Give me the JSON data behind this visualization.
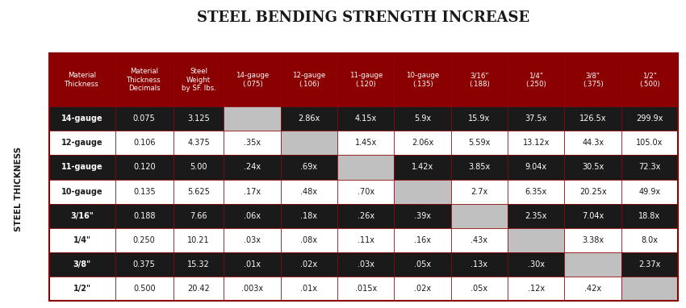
{
  "title": "STEEL BENDING STRENGTH INCREASE",
  "col_headers": [
    "Material\nThickness",
    "Material\nThickness\nDecimals",
    "Steel\nWeight\nby SF. lbs.",
    "14-gauge\n(.075)",
    "12-gauge\n(.106)",
    "11-gauge\n(.120)",
    "10-gauge\n(.135)",
    "3/16\"\n(.188)",
    "1/4\"\n(.250)",
    "3/8\"\n(.375)",
    "1/2\"\n(.500)"
  ],
  "row_labels": [
    "14-gauge",
    "12-gauge",
    "11-gauge",
    "10-gauge",
    "3/16\"",
    "1/4\"",
    "3/8\"",
    "1/2\""
  ],
  "decimals": [
    "0.075",
    "0.106",
    "0.120",
    "0.135",
    "0.188",
    "0.250",
    "0.375",
    "0.500"
  ],
  "weights": [
    "3.125",
    "4.375",
    "5.00",
    "5.625",
    "7.66",
    "10.21",
    "15.32",
    "20.42"
  ],
  "table_data": [
    [
      "",
      "2.86x",
      "4.15x",
      "5.9x",
      "15.9x",
      "37.5x",
      "126.5x",
      "299.9x"
    ],
    [
      ".35x",
      "",
      "1.45x",
      "2.06x",
      "5.59x",
      "13.12x",
      "44.3x",
      "105.0x"
    ],
    [
      ".24x",
      ".69x",
      "",
      "1.42x",
      "3.85x",
      "9.04x",
      "30.5x",
      "72.3x"
    ],
    [
      ".17x",
      ".48x",
      ".70x",
      "",
      "2.7x",
      "6.35x",
      "20.25x",
      "49.9x"
    ],
    [
      ".06x",
      ".18x",
      ".26x",
      ".39x",
      "",
      "2.35x",
      "7.04x",
      "18.8x"
    ],
    [
      ".03x",
      ".08x",
      ".11x",
      ".16x",
      ".43x",
      "",
      "3.38x",
      "8.0x"
    ],
    [
      ".01x",
      ".02x",
      ".03x",
      ".05x",
      ".13x",
      ".30x",
      "",
      "2.37x"
    ],
    [
      ".003x",
      ".01x",
      ".015x",
      ".02x",
      ".05x",
      ".12x",
      ".42x",
      ""
    ]
  ],
  "header_bg": "#8B0000",
  "header_text": "#FFFFFF",
  "row_dark_bg": "#1a1a1a",
  "row_dark_text": "#FFFFFF",
  "row_light_bg": "#FFFFFF",
  "row_light_text": "#1a1a1a",
  "diagonal_bg": "#C0C0C0",
  "border_color": "#8B0000",
  "title_color": "#1a1a1a",
  "side_label": "STEEL THICKNESS",
  "outer_bg": "#FFFFFF"
}
